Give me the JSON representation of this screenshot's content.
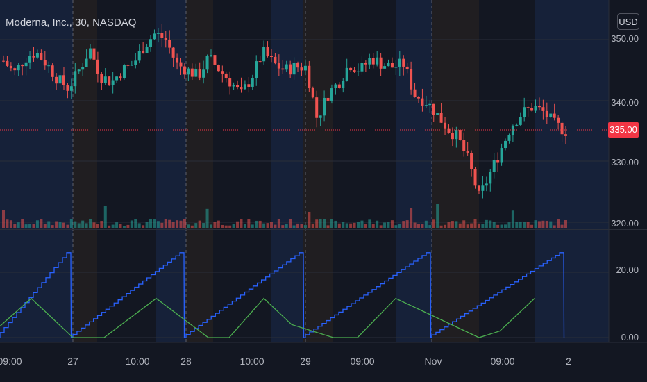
{
  "header": {
    "title": "Moderna, Inc., 30, NASDAQ",
    "currency_label": "USD"
  },
  "price_axis": {
    "labels": [
      "350.00",
      "340.00",
      "330.00",
      "320.00"
    ],
    "current_price_label": "335.00"
  },
  "indicator_axis": {
    "labels": [
      "20.00",
      "0.00"
    ]
  },
  "time_axis": {
    "labels": [
      "09:00",
      "27",
      "10:00",
      "28",
      "10:00",
      "29",
      "09:00",
      "Nov",
      "09:00",
      "2"
    ]
  },
  "colors": {
    "bg": "#131722",
    "up": "#26a69a",
    "down": "#ef5350",
    "blue_line": "#2962ff",
    "green_line": "#4caf50",
    "session_blue": "#1a2a4d",
    "session_orange": "#2b2520",
    "price_line": "#f23645"
  },
  "chart_data": {
    "type": "candlestick",
    "title": "Moderna, Inc., 30, NASDAQ",
    "price_ylim": [
      318,
      356
    ],
    "current_price": 335.0,
    "session_closes": [
      346.5,
      344.5,
      347,
      348,
      346,
      343.5,
      342,
      345,
      348.5,
      344,
      343,
      345,
      346,
      349,
      351,
      350,
      346,
      345,
      344,
      347,
      345,
      343,
      341,
      344,
      348,
      346,
      345,
      345.5,
      345.5,
      337,
      341,
      343,
      346,
      345,
      347,
      346,
      345.5,
      346,
      341,
      340,
      338,
      335.5,
      334,
      330,
      324,
      328,
      332,
      336,
      338,
      339,
      338,
      336,
      335
    ],
    "indicator": {
      "ylim": [
        0,
        28
      ],
      "series": [
        {
          "name": "",
          "color": "blue",
          "description_values": "stepped ramp reset each session to 0, peak ~26"
        },
        {
          "name": "",
          "color": "green",
          "description_values": "triangle rise to ~12 then decline to 0"
        }
      ]
    }
  }
}
